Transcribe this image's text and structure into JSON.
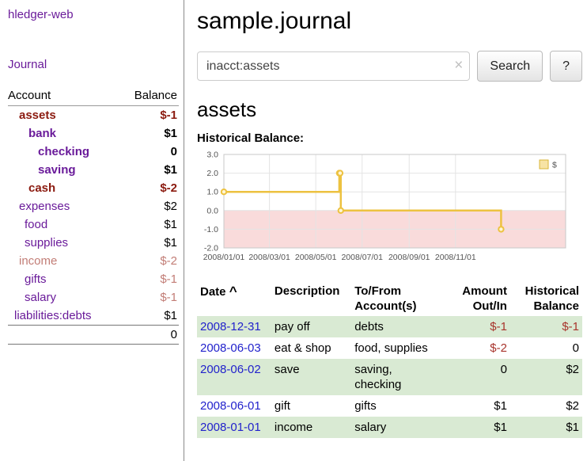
{
  "colors": {
    "purple": "#6a1b9a",
    "link_blue": "#2222cc",
    "negative_strong": "#8b1a0f",
    "negative_light": "#c27d76",
    "table_negative": "#a8342c",
    "row_green": "#d9ead3",
    "chart_line": "#edc240",
    "chart_negative_region": "#f9dbdb"
  },
  "sidebar": {
    "app_title": "hledger-web",
    "journal_link": "Journal",
    "columns": {
      "account": "Account",
      "balance": "Balance"
    },
    "accounts": [
      {
        "name": "assets",
        "balance": "$-1"
      },
      {
        "name": "bank",
        "balance": "$1"
      },
      {
        "name": "checking",
        "balance": "0"
      },
      {
        "name": "saving",
        "balance": "$1"
      },
      {
        "name": "cash",
        "balance": "$-2"
      },
      {
        "name": "expenses",
        "balance": "$2"
      },
      {
        "name": "food",
        "balance": "$1"
      },
      {
        "name": "supplies",
        "balance": "$1"
      },
      {
        "name": "income",
        "balance": "$-2"
      },
      {
        "name": "gifts",
        "balance": "$-1"
      },
      {
        "name": "salary",
        "balance": "$-1"
      },
      {
        "name": "liabilities:debts",
        "balance": "$1"
      }
    ],
    "total": "0"
  },
  "header": {
    "title": "sample.journal"
  },
  "search": {
    "value": "inacct:assets",
    "clear_icon": "×",
    "search_button": "Search",
    "help_button": "?"
  },
  "account_page": {
    "heading": "assets",
    "chart_label": "Historical Balance:"
  },
  "chart_data": {
    "type": "line",
    "title": "Historical Balance",
    "step": true,
    "legend": {
      "label": "$",
      "position": "top-right"
    },
    "series": [
      {
        "name": "$",
        "points": [
          [
            "2008-01-01",
            1
          ],
          [
            "2008-06-01",
            2
          ],
          [
            "2008-06-02",
            2
          ],
          [
            "2008-06-03",
            0
          ],
          [
            "2008-12-31",
            -1
          ]
        ]
      }
    ],
    "ylim": [
      -2,
      3
    ],
    "yticks": [
      3,
      2,
      1,
      0,
      -1,
      -2
    ],
    "xticks": [
      "2008/01/01",
      "2008/03/01",
      "2008/05/01",
      "2008/07/01",
      "2008/09/01",
      "2008/11/01"
    ],
    "x_domain_days_from_first": [
      0,
      450
    ],
    "negative_region": true,
    "grid": true
  },
  "register": {
    "headers": {
      "date": "Date",
      "sort_indicator": "^",
      "description": "Description",
      "accounts": [
        "To/From",
        "Account(s)"
      ],
      "amount": [
        "Amount",
        "Out/In"
      ],
      "balance": [
        "Historical",
        "Balance"
      ]
    },
    "rows": [
      {
        "date": "2008-12-31",
        "description": "pay off",
        "accounts_lines": [
          "debts"
        ],
        "amount": "$-1",
        "balance": "$-1"
      },
      {
        "date": "2008-06-03",
        "description": "eat & shop",
        "accounts_lines": [
          "food, supplies"
        ],
        "amount": "$-2",
        "balance": "0"
      },
      {
        "date": "2008-06-02",
        "description": "save",
        "accounts_lines": [
          "saving,",
          "checking"
        ],
        "amount": "0",
        "balance": "$2"
      },
      {
        "date": "2008-06-01",
        "description": "gift",
        "accounts_lines": [
          "gifts"
        ],
        "amount": "$1",
        "balance": "$2"
      },
      {
        "date": "2008-01-01",
        "description": "income",
        "accounts_lines": [
          "salary"
        ],
        "amount": "$1",
        "balance": "$1"
      }
    ]
  }
}
